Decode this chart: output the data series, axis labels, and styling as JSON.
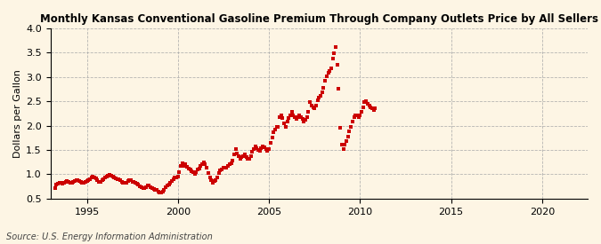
{
  "title": "Kansas Conventional Gasoline Premium Through Company Outlets Price by All Sellers",
  "title_prefix": "Monthly ",
  "ylabel": "Dollars per Gallon",
  "source": "Source: U.S. Energy Information Administration",
  "background_color": "#fdf5e4",
  "line_color": "#cc0000",
  "marker": "s",
  "markersize": 3.5,
  "xlim": [
    1993.0,
    2022.5
  ],
  "ylim": [
    0.5,
    4.0
  ],
  "yticks": [
    0.5,
    1.0,
    1.5,
    2.0,
    2.5,
    3.0,
    3.5,
    4.0
  ],
  "xticks": [
    1995,
    2000,
    2005,
    2010,
    2015,
    2020
  ],
  "data": [
    [
      1993.25,
      0.72
    ],
    [
      1993.33,
      0.78
    ],
    [
      1993.42,
      0.8
    ],
    [
      1993.5,
      0.83
    ],
    [
      1993.58,
      0.82
    ],
    [
      1993.67,
      0.8
    ],
    [
      1993.75,
      0.83
    ],
    [
      1993.83,
      0.84
    ],
    [
      1993.92,
      0.86
    ],
    [
      1994.0,
      0.84
    ],
    [
      1994.08,
      0.82
    ],
    [
      1994.17,
      0.83
    ],
    [
      1994.25,
      0.84
    ],
    [
      1994.33,
      0.86
    ],
    [
      1994.42,
      0.88
    ],
    [
      1994.5,
      0.88
    ],
    [
      1994.58,
      0.86
    ],
    [
      1994.67,
      0.84
    ],
    [
      1994.75,
      0.82
    ],
    [
      1994.83,
      0.82
    ],
    [
      1994.92,
      0.84
    ],
    [
      1995.0,
      0.86
    ],
    [
      1995.08,
      0.87
    ],
    [
      1995.17,
      0.9
    ],
    [
      1995.25,
      0.93
    ],
    [
      1995.33,
      0.95
    ],
    [
      1995.42,
      0.93
    ],
    [
      1995.5,
      0.91
    ],
    [
      1995.58,
      0.88
    ],
    [
      1995.67,
      0.85
    ],
    [
      1995.75,
      0.84
    ],
    [
      1995.83,
      0.87
    ],
    [
      1995.92,
      0.9
    ],
    [
      1996.0,
      0.93
    ],
    [
      1996.08,
      0.95
    ],
    [
      1996.17,
      0.97
    ],
    [
      1996.25,
      0.99
    ],
    [
      1996.33,
      0.97
    ],
    [
      1996.42,
      0.95
    ],
    [
      1996.5,
      0.93
    ],
    [
      1996.58,
      0.91
    ],
    [
      1996.67,
      0.9
    ],
    [
      1996.75,
      0.9
    ],
    [
      1996.83,
      0.88
    ],
    [
      1996.92,
      0.84
    ],
    [
      1997.0,
      0.83
    ],
    [
      1997.08,
      0.82
    ],
    [
      1997.17,
      0.83
    ],
    [
      1997.25,
      0.86
    ],
    [
      1997.33,
      0.88
    ],
    [
      1997.42,
      0.88
    ],
    [
      1997.5,
      0.85
    ],
    [
      1997.58,
      0.84
    ],
    [
      1997.67,
      0.83
    ],
    [
      1997.75,
      0.81
    ],
    [
      1997.83,
      0.78
    ],
    [
      1997.92,
      0.76
    ],
    [
      1998.0,
      0.74
    ],
    [
      1998.08,
      0.72
    ],
    [
      1998.17,
      0.72
    ],
    [
      1998.25,
      0.74
    ],
    [
      1998.33,
      0.77
    ],
    [
      1998.42,
      0.77
    ],
    [
      1998.5,
      0.74
    ],
    [
      1998.58,
      0.72
    ],
    [
      1998.67,
      0.7
    ],
    [
      1998.75,
      0.68
    ],
    [
      1998.83,
      0.67
    ],
    [
      1998.92,
      0.65
    ],
    [
      1999.0,
      0.63
    ],
    [
      1999.08,
      0.63
    ],
    [
      1999.17,
      0.64
    ],
    [
      1999.25,
      0.68
    ],
    [
      1999.33,
      0.74
    ],
    [
      1999.42,
      0.77
    ],
    [
      1999.5,
      0.79
    ],
    [
      1999.58,
      0.82
    ],
    [
      1999.67,
      0.86
    ],
    [
      1999.75,
      0.9
    ],
    [
      1999.83,
      0.93
    ],
    [
      1999.92,
      0.94
    ],
    [
      2000.0,
      0.95
    ],
    [
      2000.08,
      1.05
    ],
    [
      2000.17,
      1.18
    ],
    [
      2000.25,
      1.22
    ],
    [
      2000.33,
      1.18
    ],
    [
      2000.42,
      1.2
    ],
    [
      2000.5,
      1.15
    ],
    [
      2000.58,
      1.12
    ],
    [
      2000.67,
      1.1
    ],
    [
      2000.75,
      1.07
    ],
    [
      2000.83,
      1.04
    ],
    [
      2000.92,
      1.0
    ],
    [
      2001.0,
      1.04
    ],
    [
      2001.08,
      1.09
    ],
    [
      2001.17,
      1.11
    ],
    [
      2001.25,
      1.17
    ],
    [
      2001.33,
      1.21
    ],
    [
      2001.42,
      1.24
    ],
    [
      2001.5,
      1.2
    ],
    [
      2001.58,
      1.13
    ],
    [
      2001.67,
      1.03
    ],
    [
      2001.75,
      0.93
    ],
    [
      2001.83,
      0.88
    ],
    [
      2001.92,
      0.83
    ],
    [
      2002.0,
      0.86
    ],
    [
      2002.08,
      0.88
    ],
    [
      2002.17,
      0.93
    ],
    [
      2002.25,
      1.02
    ],
    [
      2002.33,
      1.08
    ],
    [
      2002.42,
      1.1
    ],
    [
      2002.5,
      1.13
    ],
    [
      2002.58,
      1.13
    ],
    [
      2002.67,
      1.13
    ],
    [
      2002.75,
      1.18
    ],
    [
      2002.83,
      1.2
    ],
    [
      2002.92,
      1.23
    ],
    [
      2003.0,
      1.28
    ],
    [
      2003.08,
      1.4
    ],
    [
      2003.17,
      1.52
    ],
    [
      2003.25,
      1.43
    ],
    [
      2003.33,
      1.38
    ],
    [
      2003.42,
      1.32
    ],
    [
      2003.5,
      1.35
    ],
    [
      2003.58,
      1.38
    ],
    [
      2003.67,
      1.4
    ],
    [
      2003.75,
      1.36
    ],
    [
      2003.83,
      1.32
    ],
    [
      2003.92,
      1.32
    ],
    [
      2004.0,
      1.38
    ],
    [
      2004.08,
      1.46
    ],
    [
      2004.17,
      1.52
    ],
    [
      2004.25,
      1.57
    ],
    [
      2004.33,
      1.53
    ],
    [
      2004.42,
      1.5
    ],
    [
      2004.5,
      1.48
    ],
    [
      2004.58,
      1.53
    ],
    [
      2004.67,
      1.57
    ],
    [
      2004.75,
      1.56
    ],
    [
      2004.83,
      1.52
    ],
    [
      2004.92,
      1.48
    ],
    [
      2005.0,
      1.52
    ],
    [
      2005.08,
      1.65
    ],
    [
      2005.17,
      1.75
    ],
    [
      2005.25,
      1.87
    ],
    [
      2005.33,
      1.92
    ],
    [
      2005.42,
      1.98
    ],
    [
      2005.5,
      1.98
    ],
    [
      2005.58,
      2.18
    ],
    [
      2005.67,
      2.22
    ],
    [
      2005.75,
      2.15
    ],
    [
      2005.83,
      2.05
    ],
    [
      2005.92,
      1.98
    ],
    [
      2006.0,
      2.08
    ],
    [
      2006.08,
      2.15
    ],
    [
      2006.17,
      2.22
    ],
    [
      2006.25,
      2.28
    ],
    [
      2006.33,
      2.22
    ],
    [
      2006.42,
      2.18
    ],
    [
      2006.5,
      2.13
    ],
    [
      2006.58,
      2.18
    ],
    [
      2006.67,
      2.22
    ],
    [
      2006.75,
      2.18
    ],
    [
      2006.83,
      2.13
    ],
    [
      2006.92,
      2.08
    ],
    [
      2007.0,
      2.12
    ],
    [
      2007.08,
      2.18
    ],
    [
      2007.17,
      2.28
    ],
    [
      2007.25,
      2.48
    ],
    [
      2007.33,
      2.42
    ],
    [
      2007.42,
      2.38
    ],
    [
      2007.5,
      2.35
    ],
    [
      2007.58,
      2.42
    ],
    [
      2007.67,
      2.52
    ],
    [
      2007.75,
      2.58
    ],
    [
      2007.83,
      2.62
    ],
    [
      2007.92,
      2.68
    ],
    [
      2008.0,
      2.78
    ],
    [
      2008.08,
      2.92
    ],
    [
      2008.17,
      3.02
    ],
    [
      2008.25,
      3.08
    ],
    [
      2008.33,
      3.12
    ],
    [
      2008.42,
      3.18
    ],
    [
      2008.5,
      3.38
    ],
    [
      2008.58,
      3.48
    ],
    [
      2008.67,
      3.62
    ],
    [
      2008.75,
      3.25
    ],
    [
      2008.83,
      2.75
    ],
    [
      2008.92,
      1.95
    ],
    [
      2009.0,
      1.6
    ],
    [
      2009.08,
      1.52
    ],
    [
      2009.17,
      1.6
    ],
    [
      2009.25,
      1.68
    ],
    [
      2009.33,
      1.78
    ],
    [
      2009.42,
      1.88
    ],
    [
      2009.5,
      1.98
    ],
    [
      2009.58,
      2.08
    ],
    [
      2009.67,
      2.18
    ],
    [
      2009.75,
      2.22
    ],
    [
      2009.83,
      2.22
    ],
    [
      2009.92,
      2.18
    ],
    [
      2010.0,
      2.22
    ],
    [
      2010.08,
      2.28
    ],
    [
      2010.17,
      2.38
    ],
    [
      2010.25,
      2.48
    ],
    [
      2010.33,
      2.5
    ],
    [
      2010.42,
      2.45
    ],
    [
      2010.5,
      2.42
    ],
    [
      2010.58,
      2.38
    ],
    [
      2010.67,
      2.35
    ],
    [
      2010.75,
      2.32
    ],
    [
      2010.83,
      2.35
    ]
  ]
}
